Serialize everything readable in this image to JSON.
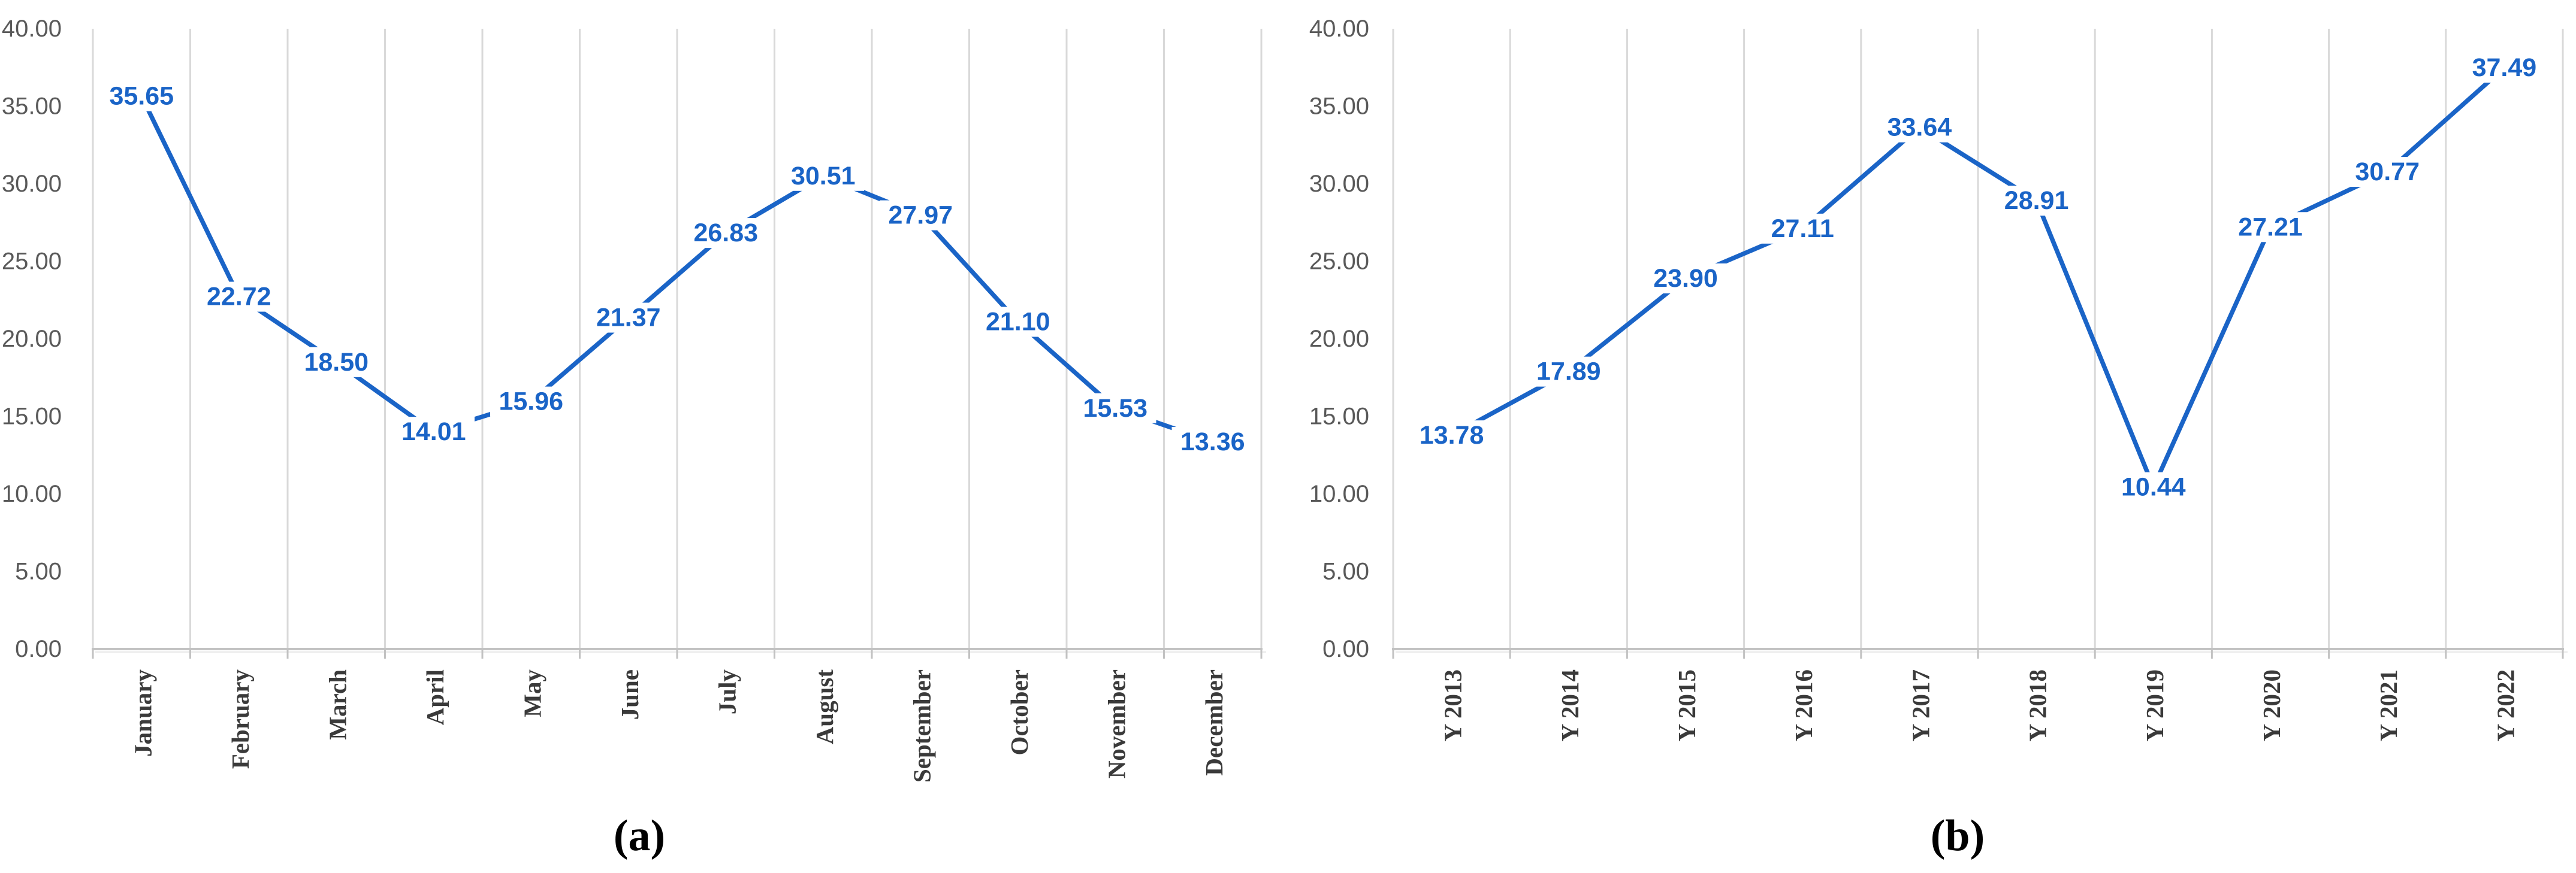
{
  "page": {
    "background_color": "#ffffff",
    "description": "Two Excel-style line charts side by side with centered blue data labels"
  },
  "colors": {
    "line": "#1a64c7",
    "data_label": "#1a64c7",
    "gridline": "#d9d9d9",
    "axis": "#c2c2c2",
    "y_tick_text": "#595959",
    "x_tick_text": "#3a3a3a",
    "caption_text": "#000000"
  },
  "chart_data": [
    {
      "id": "a",
      "type": "line",
      "caption": "(a)",
      "title": "",
      "xlabel": "",
      "ylabel": "",
      "categories": [
        "January",
        "February",
        "March",
        "April",
        "May",
        "June",
        "July",
        "August",
        "September",
        "October",
        "November",
        "December"
      ],
      "values": [
        35.65,
        22.72,
        18.5,
        14.01,
        15.96,
        21.37,
        26.83,
        30.51,
        27.97,
        21.1,
        15.53,
        13.36
      ],
      "data_labels": [
        "35.65",
        "22.72",
        "18.50",
        "14.01",
        "15.96",
        "21.37",
        "26.83",
        "30.51",
        "27.97",
        "21.10",
        "15.53",
        "13.36"
      ],
      "ylim": [
        0,
        40
      ],
      "ytick_step": 5,
      "ytick_labels": [
        "0.00",
        "5.00",
        "10.00",
        "15.00",
        "20.00",
        "25.00",
        "30.00",
        "35.00",
        "40.00"
      ],
      "grid": "vertical-only",
      "legend": "none",
      "data_label_position": "center",
      "x_label_rotation_degrees": -90
    },
    {
      "id": "b",
      "type": "line",
      "caption": "(b)",
      "title": "",
      "xlabel": "",
      "ylabel": "",
      "categories": [
        "Y 2013",
        "Y 2014",
        "Y 2015",
        "Y 2016",
        "Y 2017",
        "Y 2018",
        "Y 2019",
        "Y 2020",
        "Y 2021",
        "Y 2022"
      ],
      "values": [
        13.78,
        17.89,
        23.9,
        27.11,
        33.64,
        28.91,
        10.44,
        27.21,
        30.77,
        37.49
      ],
      "data_labels": [
        "13.78",
        "17.89",
        "23.90",
        "27.11",
        "33.64",
        "28.91",
        "10.44",
        "27.21",
        "30.77",
        "37.49"
      ],
      "ylim": [
        0,
        40
      ],
      "ytick_step": 5,
      "ytick_labels": [
        "0.00",
        "5.00",
        "10.00",
        "15.00",
        "20.00",
        "25.00",
        "30.00",
        "35.00",
        "40.00"
      ],
      "grid": "vertical-only",
      "legend": "none",
      "data_label_position": "center",
      "x_label_rotation_degrees": -90
    }
  ]
}
